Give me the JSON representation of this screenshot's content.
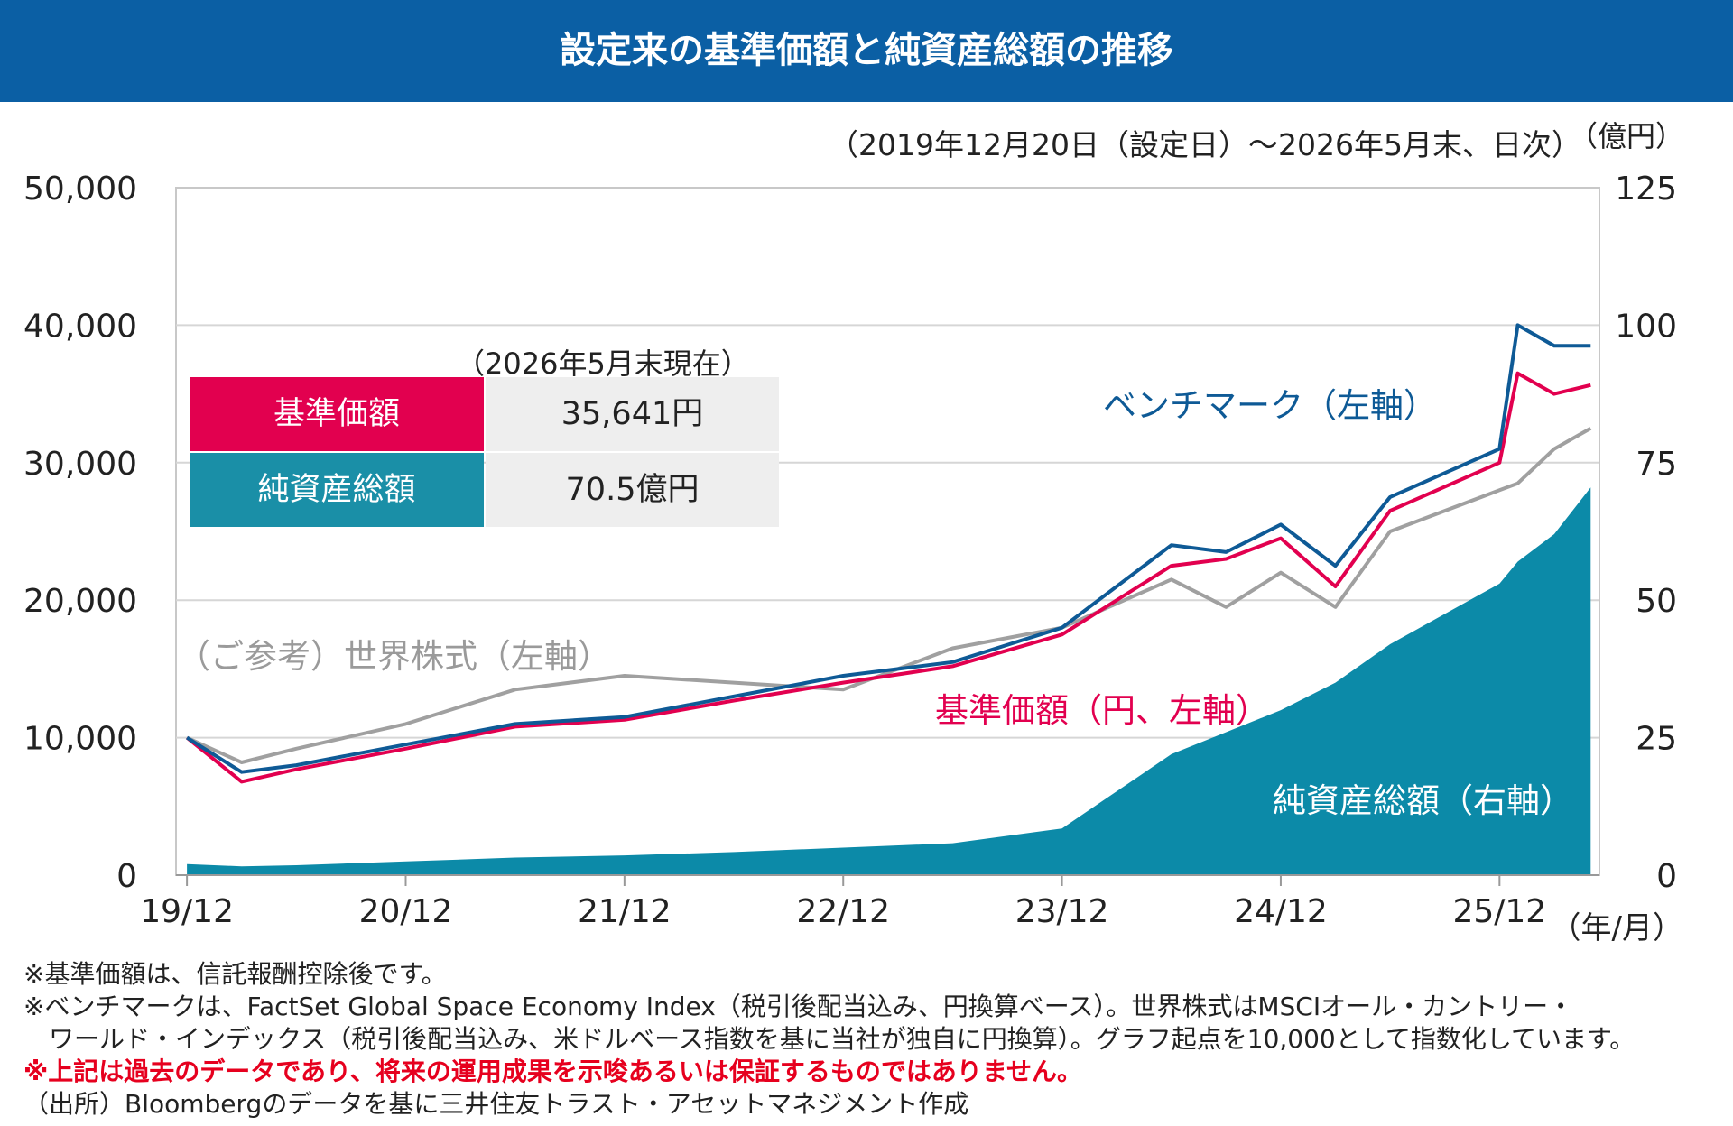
{
  "header": {
    "title": "設定来の基準価額と純資産総額の推移"
  },
  "chart_data": {
    "type": "line",
    "period_label": "（2019年12月20日（設定日）～2026年5月末、日次）",
    "x_unit_label": "（年/月）",
    "y_right_unit_label": "（億円）",
    "x_ticks": [
      "19/12",
      "20/12",
      "21/12",
      "22/12",
      "23/12",
      "24/12",
      "25/12"
    ],
    "y_left_ticks": [
      "0",
      "10,000",
      "20,000",
      "30,000",
      "40,000",
      "50,000"
    ],
    "y_right_ticks": [
      "0",
      "25",
      "50",
      "75",
      "100",
      "125"
    ],
    "y_left_lim": [
      0,
      50000
    ],
    "y_right_lim": [
      0,
      125
    ],
    "x": [
      "2019-12",
      "2020-03",
      "2020-06",
      "2020-12",
      "2021-06",
      "2021-12",
      "2022-06",
      "2022-12",
      "2023-06",
      "2023-12",
      "2024-06",
      "2024-09",
      "2024-12",
      "2025-03",
      "2025-06",
      "2025-12",
      "2026-01",
      "2026-03",
      "2026-05"
    ],
    "series": [
      {
        "name": "ベンチマーク（左軸）",
        "axis": "left",
        "color": "#0e5a96",
        "values": [
          10000,
          7500,
          8000,
          9500,
          11000,
          11500,
          13000,
          14500,
          15500,
          18000,
          24000,
          23500,
          25500,
          22500,
          27500,
          31000,
          40000,
          38500,
          38500
        ]
      },
      {
        "name": "基準価額（円、左軸）",
        "axis": "left",
        "color": "#e2004f",
        "values": [
          10000,
          6800,
          7700,
          9200,
          10800,
          11300,
          12700,
          14000,
          15200,
          17500,
          22500,
          23000,
          24500,
          21000,
          26500,
          30000,
          36500,
          35000,
          35641
        ]
      },
      {
        "name": "（ご参考）世界株式（左軸）",
        "axis": "left",
        "color": "#a0a0a0",
        "values": [
          10000,
          8200,
          9200,
          11000,
          13500,
          14500,
          14000,
          13500,
          16500,
          18000,
          21500,
          19500,
          22000,
          19500,
          25000,
          28000,
          28500,
          31000,
          32500
        ]
      },
      {
        "name": "純資産総額（右軸）",
        "axis": "right",
        "color": "#0c8aa8",
        "type": "area",
        "values": [
          2,
          1.6,
          1.8,
          2.5,
          3.2,
          3.6,
          4.2,
          5,
          5.8,
          8.5,
          22,
          26,
          30,
          35,
          42,
          53,
          57,
          62,
          70.5
        ]
      }
    ],
    "annotations": [
      {
        "text": "ベンチマーク（左軸）",
        "color": "#0e5a96"
      },
      {
        "text": "基準価額（円、左軸）",
        "color": "#e2004f"
      },
      {
        "text": "（ご参考）世界株式（左軸）",
        "color": "#9a9a9a"
      },
      {
        "text": "純資産総額（右軸）",
        "color": "#ffffff"
      }
    ]
  },
  "summary": {
    "as_of": "（2026年5月末現在）",
    "rows": [
      {
        "label": "基準価額",
        "value": "35,641円",
        "color": "#e2004f"
      },
      {
        "label": "純資産総額",
        "value": "70.5億円",
        "color": "#1a8fa7"
      }
    ]
  },
  "notes": [
    "※基準価額は、信託報酬控除後です。",
    "※ベンチマークは、FactSet Global Space Economy Index（税引後配当込み、円換算ベース）。世界株式はMSCIオール・カントリー・",
    "　ワールド・インデックス（税引後配当込み、米ドルベース指数を基に当社が独自に円換算）。グラフ起点を10,000として指数化しています。",
    "※上記は過去のデータであり、将来の運用成果を示唆あるいは保証するものではありません。",
    "（出所）Bloombergのデータを基に三井住友トラスト・アセットマネジメント作成"
  ]
}
